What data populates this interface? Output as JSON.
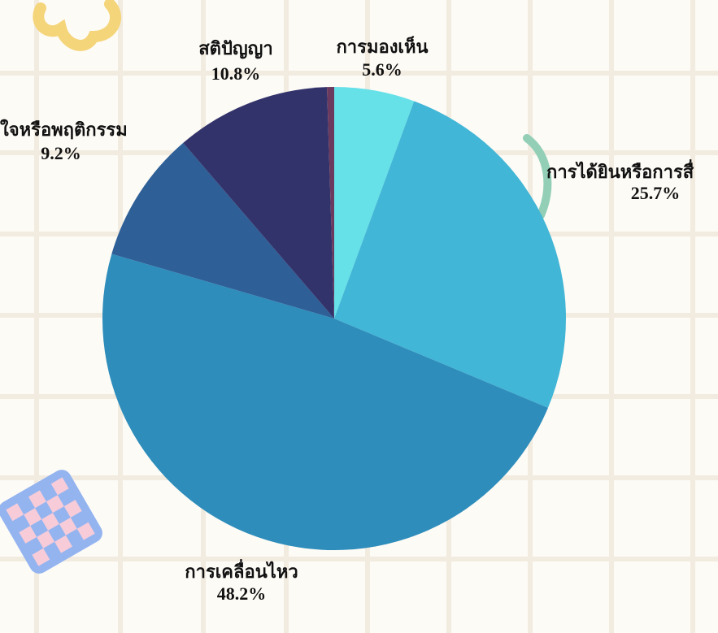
{
  "chart_data": {
    "type": "pie",
    "categories": [
      "การมองเห็น",
      "การได้ยินหรือการสื่",
      "การเคลื่อนไหว",
      "ใจหรือพฤติกรรม",
      "สติปัญญา",
      null
    ],
    "values": [
      5.6,
      25.7,
      48.2,
      9.2,
      10.8,
      0.5
    ],
    "value_labels": [
      "5.6%",
      "25.7%",
      "48.2%",
      "9.2%",
      "10.8%",
      null
    ],
    "colors": [
      "#66e1e8",
      "#42b6d6",
      "#2e8dbb",
      "#2e5f97",
      "#33336b",
      "#6b3a5e"
    ]
  }
}
